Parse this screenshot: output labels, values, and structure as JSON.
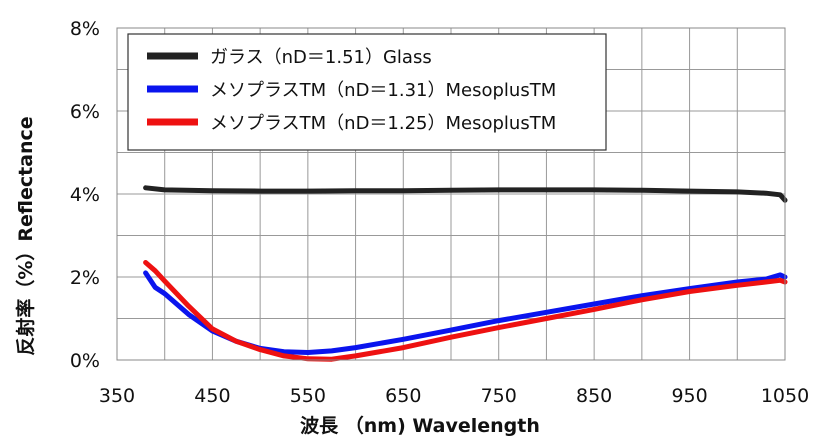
{
  "chart_data": {
    "type": "line",
    "xlabel": "波長 （nm) Wavelength",
    "ylabel": "反射率（%）Reflectance",
    "xlim": [
      350,
      1050
    ],
    "ylim": [
      0,
      8
    ],
    "x_ticks": [
      "350",
      "450",
      "550",
      "650",
      "750",
      "850",
      "950",
      "1050"
    ],
    "y_ticks": [
      "0%",
      "2%",
      "4%",
      "6%",
      "8%"
    ],
    "grid": true,
    "legend_position": "top-left",
    "series": [
      {
        "name": "ガラス（nD＝1.51）Glass",
        "color": "#222222",
        "x": [
          380,
          400,
          450,
          500,
          550,
          600,
          650,
          700,
          750,
          800,
          850,
          900,
          950,
          1000,
          1030,
          1045,
          1050
        ],
        "values": [
          4.15,
          4.1,
          4.08,
          4.07,
          4.07,
          4.08,
          4.08,
          4.09,
          4.1,
          4.1,
          4.1,
          4.09,
          4.07,
          4.05,
          4.02,
          3.98,
          3.85
        ]
      },
      {
        "name": "メソプラスTM（nD＝1.31）MesoplusTM",
        "color": "#0a14ee",
        "x": [
          380,
          390,
          400,
          425,
          450,
          475,
          500,
          525,
          550,
          575,
          600,
          650,
          700,
          750,
          800,
          850,
          900,
          950,
          1000,
          1030,
          1045,
          1050
        ],
        "values": [
          2.1,
          1.75,
          1.6,
          1.1,
          0.7,
          0.45,
          0.28,
          0.2,
          0.18,
          0.22,
          0.3,
          0.5,
          0.72,
          0.95,
          1.15,
          1.35,
          1.55,
          1.72,
          1.88,
          1.95,
          2.05,
          2.0
        ]
      },
      {
        "name": "メソプラスTM（nD＝1.25）MesoplusTM",
        "color": "#ee1111",
        "x": [
          380,
          390,
          400,
          425,
          450,
          475,
          500,
          525,
          550,
          575,
          600,
          650,
          700,
          750,
          800,
          850,
          900,
          950,
          1000,
          1030,
          1045,
          1050
        ],
        "values": [
          2.35,
          2.15,
          1.9,
          1.3,
          0.75,
          0.45,
          0.25,
          0.1,
          0.03,
          0.02,
          0.1,
          0.3,
          0.55,
          0.78,
          1.0,
          1.22,
          1.45,
          1.65,
          1.8,
          1.88,
          1.92,
          1.88
        ]
      }
    ]
  }
}
